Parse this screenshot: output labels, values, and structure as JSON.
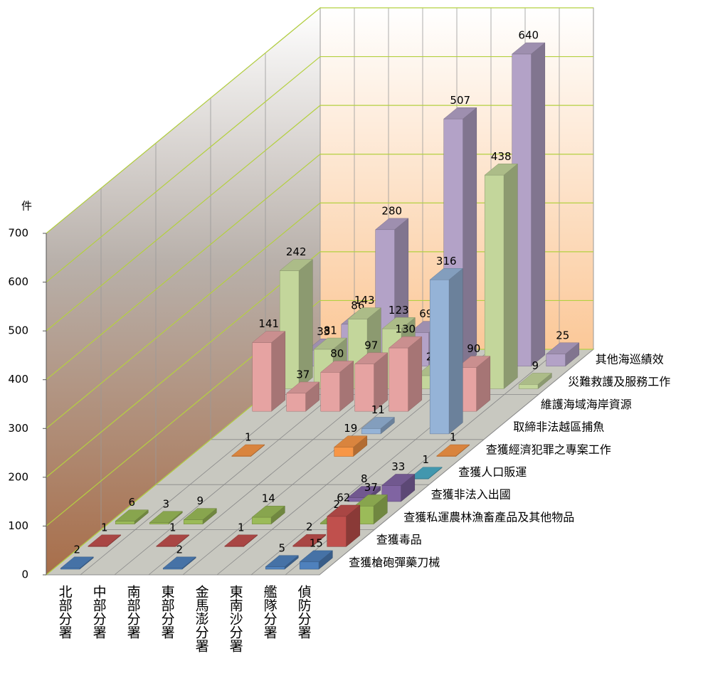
{
  "chart_data": {
    "type": "bar3d",
    "y_label": "件",
    "categories": [
      "北部分署",
      "中部分署",
      "南部分署",
      "東部分署",
      "金馬澎分署",
      "東南沙分署",
      "艦隊分署",
      "偵防分署"
    ],
    "series": [
      {
        "name": "查獲槍砲彈藥刀械",
        "color": "#4f81bd",
        "values": [
          2,
          null,
          null,
          2,
          null,
          null,
          5,
          15
        ]
      },
      {
        "name": "查獲毒品",
        "color": "#c0504d",
        "values": [
          1,
          null,
          1,
          null,
          1,
          null,
          2,
          62
        ]
      },
      {
        "name": "查獲私運農林漁畜產品及其他物品",
        "color": "#9bbb59",
        "values": [
          6,
          3,
          9,
          null,
          14,
          null,
          2,
          37
        ]
      },
      {
        "name": "查獲非法入出國",
        "color": "#8064a2",
        "values": [
          null,
          null,
          null,
          null,
          null,
          null,
          8,
          33
        ]
      },
      {
        "name": "查獲人口販運",
        "color": "#4bacc6",
        "values": [
          null,
          null,
          null,
          null,
          null,
          null,
          null,
          1
        ]
      },
      {
        "name": "查獲經濟犯罪之專案工作",
        "color": "#f79646",
        "values": [
          null,
          1,
          null,
          null,
          19,
          null,
          null,
          1
        ]
      },
      {
        "name": "取締非法越區捕魚",
        "color": "#95b3d7",
        "values": [
          null,
          null,
          null,
          null,
          11,
          null,
          316,
          null
        ]
      },
      {
        "name": "維護海域海岸資源",
        "color": "#e6a3a2",
        "values": [
          141,
          37,
          80,
          97,
          130,
          null,
          90,
          null
        ]
      },
      {
        "name": "災難救護及服務工作",
        "color": "#c3d69b",
        "values": [
          242,
          81,
          143,
          123,
          27,
          null,
          438,
          9
        ]
      },
      {
        "name": "其他海巡績效",
        "color": "#b3a2c7",
        "values": [
          33,
          86,
          280,
          69,
          507,
          null,
          640,
          25
        ]
      }
    ],
    "ylim": [
      0,
      700
    ],
    "yticks": [
      0,
      100,
      200,
      300,
      400,
      500,
      600,
      700
    ],
    "grid": true
  }
}
